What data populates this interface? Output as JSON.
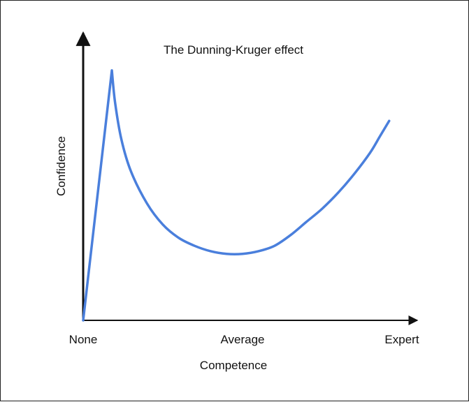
{
  "chart_data": {
    "type": "line",
    "title": "The Dunning-Kruger effect",
    "xlabel": "Competence",
    "ylabel": "Confidence",
    "x_tick_labels": [
      {
        "value": 0,
        "label": "None"
      },
      {
        "value": 50,
        "label": "Average"
      },
      {
        "value": 100,
        "label": "Expert"
      }
    ],
    "xlim": [
      0,
      100
    ],
    "ylim": [
      0,
      100
    ],
    "grid": false,
    "line_color": "#4a7fdc",
    "series": [
      {
        "x": [
          0,
          9.0,
          10.0,
          12.0,
          15.0,
          20.0,
          25.0,
          30.0,
          35.0,
          40.0,
          45.0,
          50.0,
          55.0,
          60.0,
          65.0,
          70.0,
          75.0,
          80.0,
          85.0,
          90.0,
          93.0,
          95.0,
          96.0
        ],
        "values": [
          0,
          94,
          82,
          68,
          56,
          44,
          36,
          31,
          28,
          26,
          25,
          25,
          26,
          28,
          32,
          37,
          42,
          48,
          55,
          63,
          69,
          73,
          75
        ]
      }
    ]
  }
}
